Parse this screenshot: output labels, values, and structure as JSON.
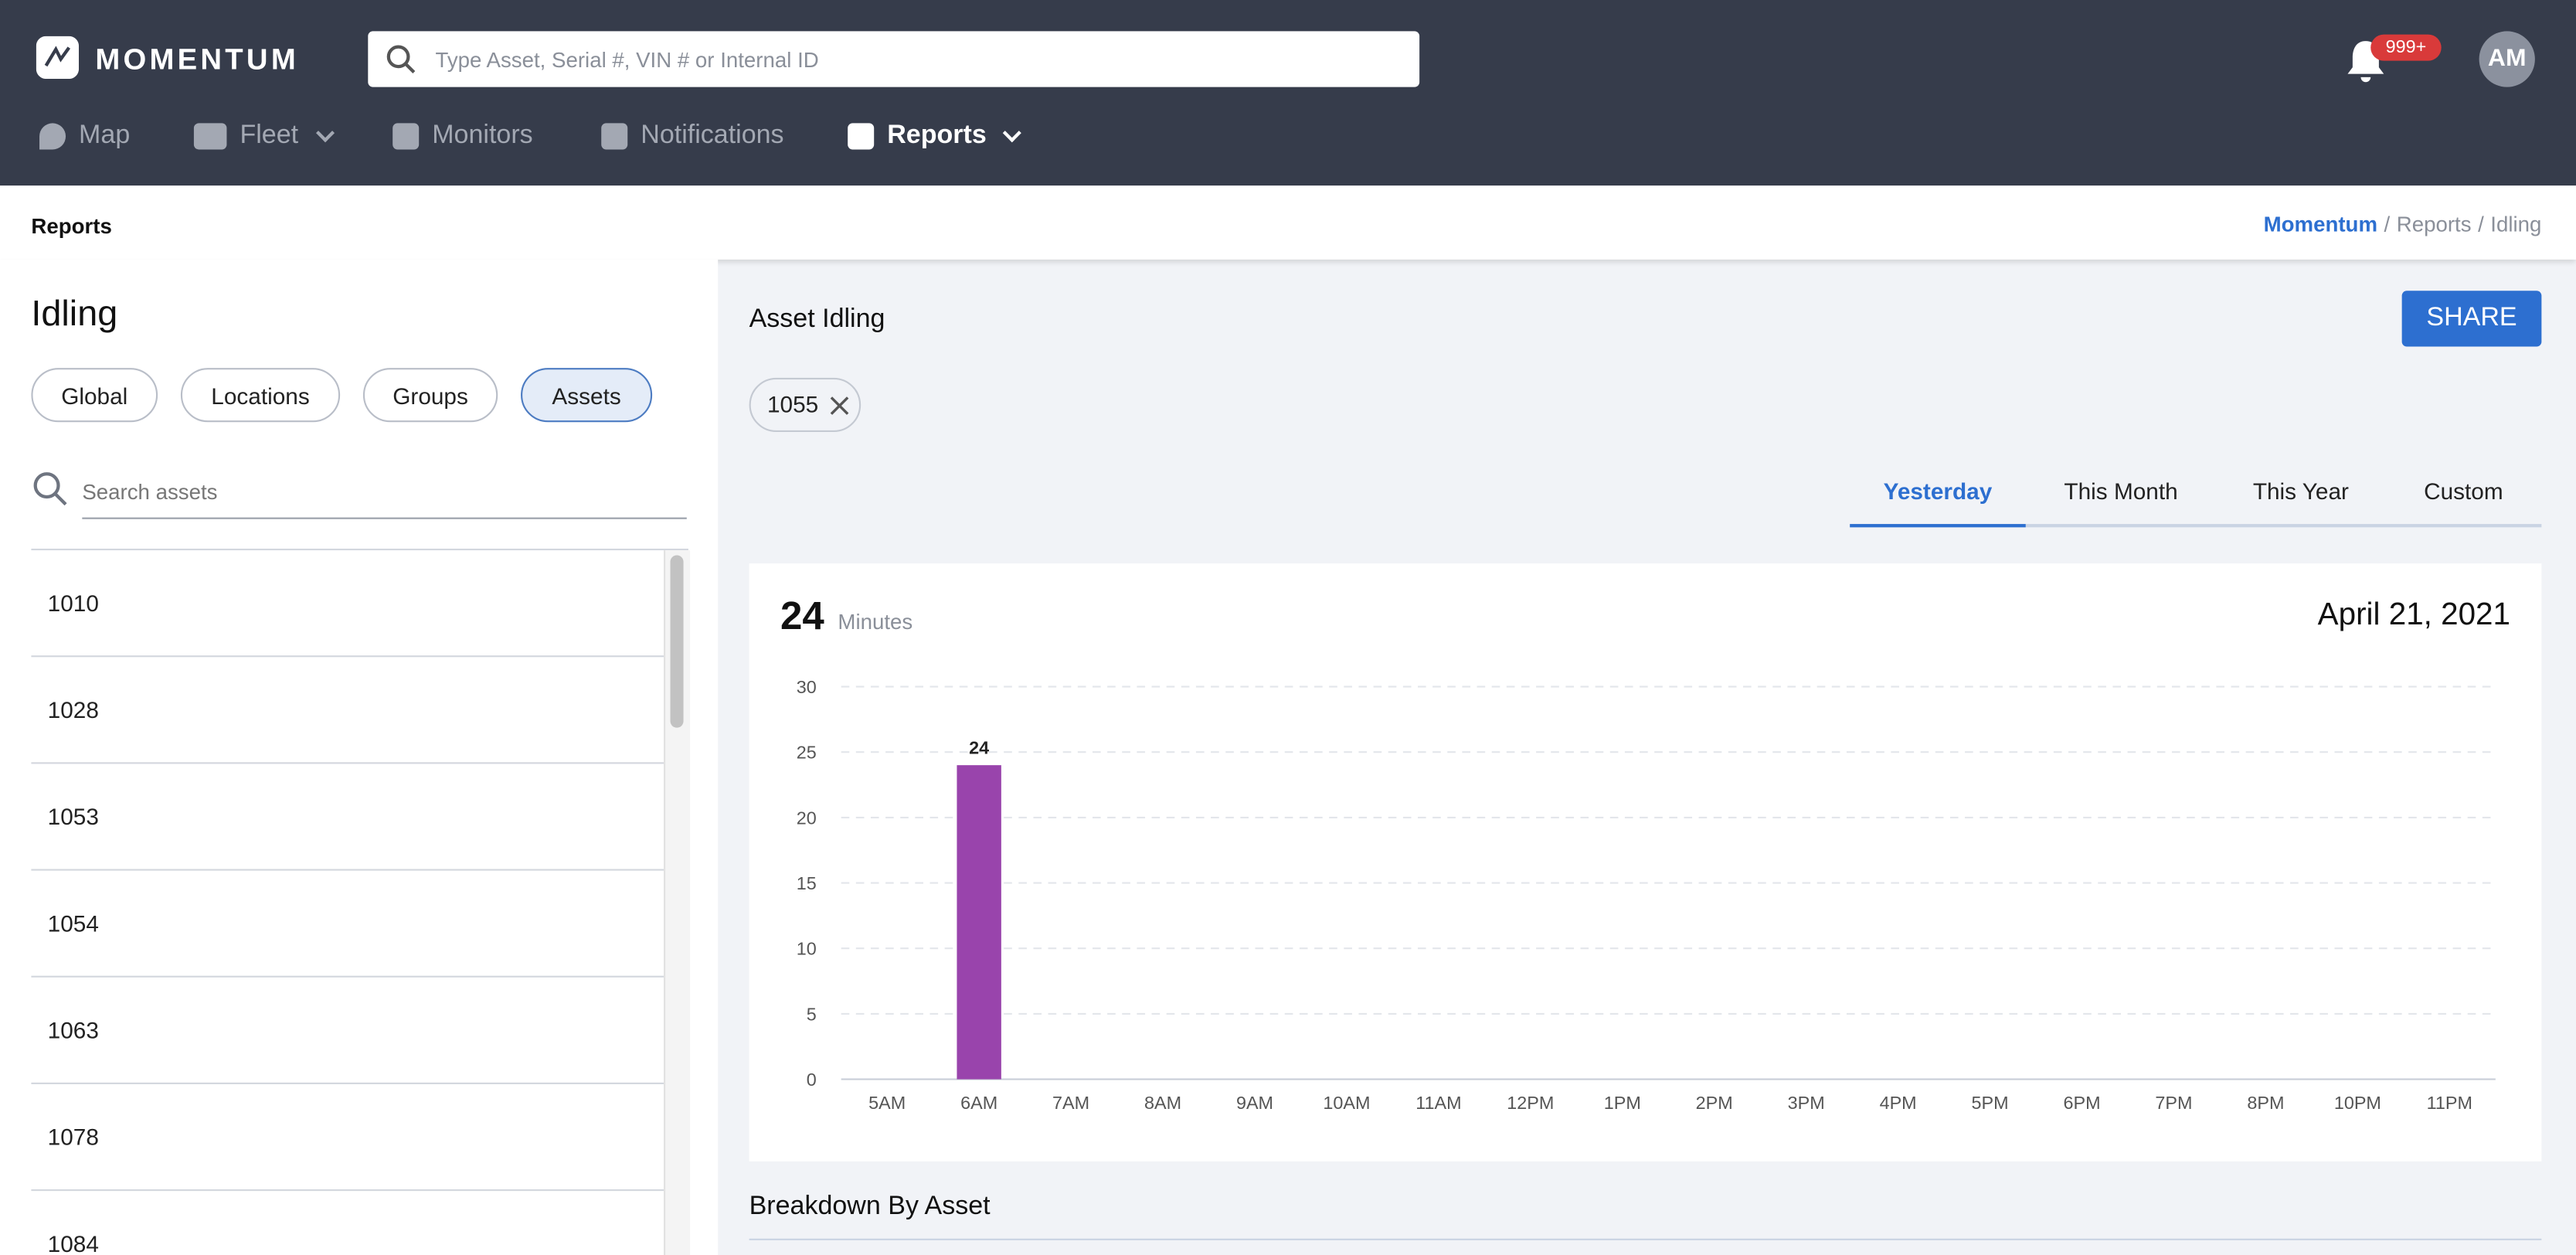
{
  "header": {
    "brand": "MOMENTUM",
    "search_placeholder": "Type Asset, Serial #, VIN # or Internal ID",
    "notification_badge": "999+",
    "avatar": "AM",
    "nav": [
      "Map",
      "Fleet",
      "Monitors",
      "Notifications",
      "Reports"
    ],
    "active_nav": "Reports"
  },
  "breadcrumb": {
    "page": "Reports",
    "trail": [
      "Momentum",
      "Reports",
      "Idling"
    ],
    "separator": "/"
  },
  "sidebar": {
    "title": "Idling",
    "filters": [
      "Global",
      "Locations",
      "Groups",
      "Assets"
    ],
    "active_filter": "Assets",
    "search_placeholder": "Search assets",
    "assets": [
      "1010",
      "1028",
      "1053",
      "1054",
      "1063",
      "1078",
      "1084"
    ]
  },
  "panel": {
    "title": "Asset Idling",
    "share": "SHARE",
    "chips": [
      "1055"
    ],
    "tabs": [
      "Yesterday",
      "This Month",
      "This Year",
      "Custom"
    ],
    "active_tab": "Yesterday",
    "total": "24",
    "total_unit": "Minutes",
    "date": "April 21, 2021",
    "breakdown_title": "Breakdown By Asset"
  },
  "chart_data": {
    "type": "bar",
    "categories": [
      "5AM",
      "6AM",
      "7AM",
      "8AM",
      "9AM",
      "10AM",
      "11AM",
      "12PM",
      "1PM",
      "2PM",
      "3PM",
      "4PM",
      "5PM",
      "6PM",
      "7PM",
      "8PM",
      "10PM",
      "11PM"
    ],
    "values": [
      0,
      24,
      0,
      0,
      0,
      0,
      0,
      0,
      0,
      0,
      0,
      0,
      0,
      0,
      0,
      0,
      0,
      0
    ],
    "color": "#9944ac",
    "ylim": [
      0,
      30
    ],
    "yticks": [
      0,
      5,
      10,
      15,
      20,
      25,
      30
    ],
    "grid": true
  }
}
